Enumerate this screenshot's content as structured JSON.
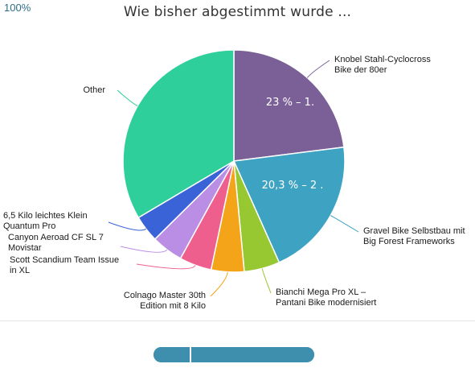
{
  "chart_data": {
    "type": "pie",
    "title": "Wie bisher abgestimmt wurde ...",
    "slices": [
      {
        "label": "Knobel Stahl-Cyclocross Bike der 80er",
        "value": 23,
        "color": "#7b6097",
        "data_label": "23 % – 1."
      },
      {
        "label": "Gravel Bike Selbstbau mit Big Forest Frameworks",
        "value": 20.3,
        "color": "#3ea3c3",
        "data_label": "20,3 % – 2 ."
      },
      {
        "label": "Bianchi Mega Pro XL – Pantani Bike modernisiert",
        "value": 5.2,
        "color": "#97c831",
        "data_label": ""
      },
      {
        "label": "Colnago Master 30th Edition mit 8 Kilo",
        "value": 4.8,
        "color": "#f4a418",
        "data_label": ""
      },
      {
        "label": "Scott Scandium Team Issue in XL",
        "value": 4.7,
        "color": "#ef5f8d",
        "data_label": ""
      },
      {
        "label": "Canyon Aeroad CF SL 7 Movistar",
        "value": 4.6,
        "color": "#bb8ee5",
        "data_label": ""
      },
      {
        "label": "6,5 Kilo leichtes Klein Quantum Pro",
        "value": 3.9,
        "color": "#3b63d8",
        "data_label": ""
      },
      {
        "label": "Other",
        "value": 33.5,
        "color": "#2fcf9c",
        "data_label": ""
      }
    ]
  },
  "progress": {
    "value": 1.0,
    "label": "100%",
    "color": "#3d8fad"
  }
}
